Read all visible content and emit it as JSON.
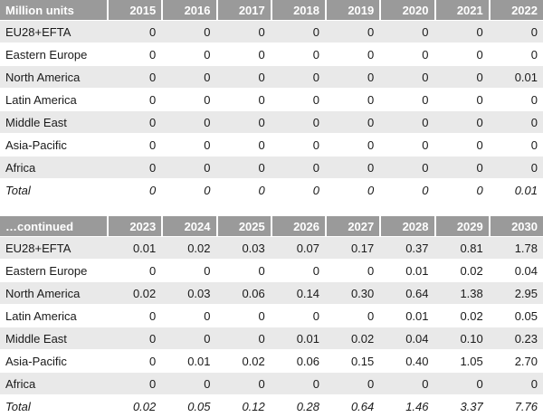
{
  "tables": [
    {
      "header_label": "Million units",
      "years": [
        "2015",
        "2016",
        "2017",
        "2018",
        "2019",
        "2020",
        "2021",
        "2022"
      ],
      "rows": [
        {
          "region": "EU28+EFTA",
          "values": [
            "0",
            "0",
            "0",
            "0",
            "0",
            "0",
            "0",
            "0"
          ]
        },
        {
          "region": "Eastern Europe",
          "values": [
            "0",
            "0",
            "0",
            "0",
            "0",
            "0",
            "0",
            "0"
          ]
        },
        {
          "region": "North America",
          "values": [
            "0",
            "0",
            "0",
            "0",
            "0",
            "0",
            "0",
            "0.01"
          ]
        },
        {
          "region": "Latin America",
          "values": [
            "0",
            "0",
            "0",
            "0",
            "0",
            "0",
            "0",
            "0"
          ]
        },
        {
          "region": "Middle East",
          "values": [
            "0",
            "0",
            "0",
            "0",
            "0",
            "0",
            "0",
            "0"
          ]
        },
        {
          "region": "Asia-Pacific",
          "values": [
            "0",
            "0",
            "0",
            "0",
            "0",
            "0",
            "0",
            "0"
          ]
        },
        {
          "region": "Africa",
          "values": [
            "0",
            "0",
            "0",
            "0",
            "0",
            "0",
            "0",
            "0"
          ]
        },
        {
          "region": "Total",
          "values": [
            "0",
            "0",
            "0",
            "0",
            "0",
            "0",
            "0",
            "0.01"
          ]
        }
      ]
    },
    {
      "header_label": "…continued",
      "years": [
        "2023",
        "2024",
        "2025",
        "2026",
        "2027",
        "2028",
        "2029",
        "2030"
      ],
      "rows": [
        {
          "region": "EU28+EFTA",
          "values": [
            "0.01",
            "0.02",
            "0.03",
            "0.07",
            "0.17",
            "0.37",
            "0.81",
            "1.78"
          ]
        },
        {
          "region": "Eastern Europe",
          "values": [
            "0",
            "0",
            "0",
            "0",
            "0",
            "0.01",
            "0.02",
            "0.04"
          ]
        },
        {
          "region": "North America",
          "values": [
            "0.02",
            "0.03",
            "0.06",
            "0.14",
            "0.30",
            "0.64",
            "1.38",
            "2.95"
          ]
        },
        {
          "region": "Latin America",
          "values": [
            "0",
            "0",
            "0",
            "0",
            "0",
            "0.01",
            "0.02",
            "0.05"
          ]
        },
        {
          "region": "Middle East",
          "values": [
            "0",
            "0",
            "0",
            "0.01",
            "0.02",
            "0.04",
            "0.10",
            "0.23"
          ]
        },
        {
          "region": "Asia-Pacific",
          "values": [
            "0",
            "0.01",
            "0.02",
            "0.06",
            "0.15",
            "0.40",
            "1.05",
            "2.70"
          ]
        },
        {
          "region": "Africa",
          "values": [
            "0",
            "0",
            "0",
            "0",
            "0",
            "0",
            "0",
            "0"
          ]
        },
        {
          "region": "Total",
          "values": [
            "0.02",
            "0.05",
            "0.12",
            "0.28",
            "0.64",
            "1.46",
            "3.37",
            "7.76"
          ]
        }
      ]
    }
  ],
  "colors": {
    "header_bg": "#9a9a9a",
    "header_text": "#ffffff",
    "row_shade": "#e9e9e9",
    "row_plain": "#ffffff",
    "body_text": "#1a1a1a"
  }
}
